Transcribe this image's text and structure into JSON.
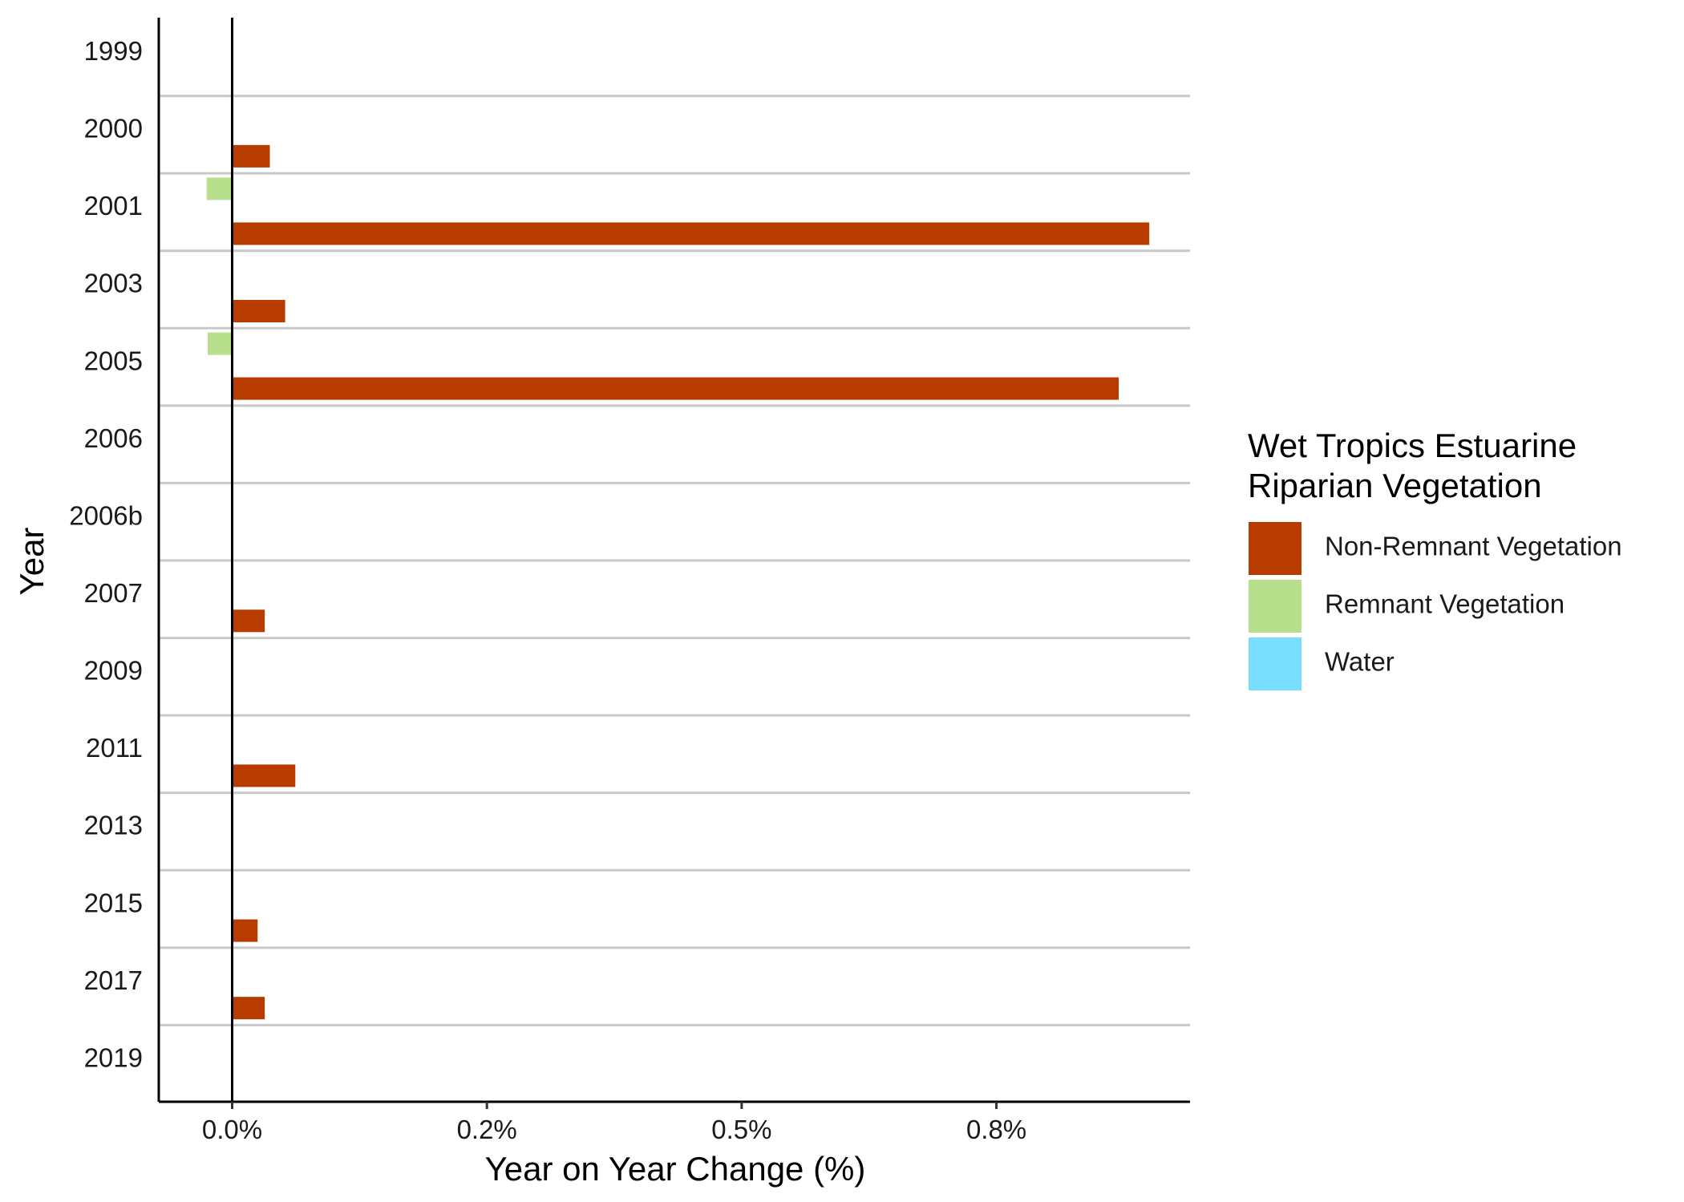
{
  "chart_data": {
    "type": "bar",
    "orientation": "horizontal",
    "categories": [
      "1999",
      "2000",
      "2001",
      "2003",
      "2005",
      "2006",
      "2006b",
      "2007",
      "2009",
      "2011",
      "2013",
      "2015",
      "2017",
      "2019"
    ],
    "series": [
      {
        "name": "Non-Remnant Vegetation",
        "color": "#B83C00",
        "values": [
          0,
          0.037,
          0.9,
          0.052,
          0.87,
          0,
          0,
          0.032,
          0,
          0.062,
          0,
          0.025,
          0.032,
          0
        ]
      },
      {
        "name": "Remnant Vegetation",
        "color": "#B8E08C",
        "values": [
          0,
          0,
          -0.025,
          0,
          -0.024,
          0,
          0,
          0,
          0,
          0,
          0,
          0,
          0,
          0
        ]
      },
      {
        "name": "Water",
        "color": "#78DDFF",
        "values": [
          0,
          0,
          0,
          0,
          0,
          0,
          0,
          0,
          0,
          0,
          0,
          0,
          0,
          0
        ]
      }
    ],
    "xlabel": "Year on Year Change (%)",
    "ylabel": "Year",
    "xlim": [
      -0.072,
      0.94
    ],
    "xticks": [
      0,
      0.25,
      0.5,
      0.75
    ],
    "xtick_labels": [
      "0.0%",
      "0.2%",
      "0.5%",
      "0.8%"
    ],
    "legend": {
      "title_line1": "Wet Tropics Estuarine",
      "title_line2": "Riparian Vegetation",
      "position": "right"
    },
    "grid": "horizontal separators between years"
  }
}
